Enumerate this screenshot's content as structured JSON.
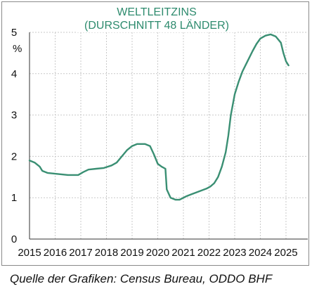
{
  "chart_data": {
    "type": "line",
    "title": [
      "WELTLEITZINS",
      "(DURSCHNITT 48 LÄNDER)"
    ],
    "ylabel": "%",
    "xlim": [
      2015.0,
      2025.85
    ],
    "ylim": [
      0,
      5
    ],
    "yticks": [
      "0",
      "1",
      "2",
      "3",
      "4",
      "5"
    ],
    "xticks": [
      "2015",
      "2016",
      "2017",
      "2018",
      "2019",
      "2020",
      "2021",
      "2022",
      "2023",
      "2024",
      "2025"
    ],
    "grid": true,
    "series_color": "#3a8f73",
    "series": [
      {
        "x": [
          2015.0,
          2015.2,
          2015.4,
          2015.5,
          2015.7,
          2016.0,
          2016.5,
          2016.9,
          2017.1,
          2017.3,
          2017.6,
          2017.9,
          2018.2,
          2018.4,
          2018.6,
          2018.8,
          2019.0,
          2019.2,
          2019.5,
          2019.7,
          2019.85,
          2020.0,
          2020.15,
          2020.3,
          2020.35,
          2020.5,
          2020.7,
          2020.85,
          2021.1,
          2021.3,
          2021.6,
          2021.9,
          2022.05,
          2022.2,
          2022.35,
          2022.5,
          2022.65,
          2022.75,
          2022.85,
          2023.0,
          2023.15,
          2023.3,
          2023.5,
          2023.7,
          2023.85,
          2024.0,
          2024.2,
          2024.4,
          2024.6,
          2024.8,
          2024.9,
          2025.0,
          2025.1
        ],
        "values": [
          1.9,
          1.85,
          1.75,
          1.65,
          1.6,
          1.58,
          1.55,
          1.55,
          1.62,
          1.68,
          1.7,
          1.72,
          1.78,
          1.85,
          2.0,
          2.15,
          2.25,
          2.3,
          2.3,
          2.25,
          2.05,
          1.82,
          1.75,
          1.7,
          1.2,
          1.0,
          0.95,
          0.95,
          1.03,
          1.08,
          1.15,
          1.22,
          1.27,
          1.35,
          1.5,
          1.75,
          2.1,
          2.5,
          3.0,
          3.5,
          3.8,
          4.05,
          4.3,
          4.55,
          4.72,
          4.85,
          4.92,
          4.95,
          4.9,
          4.75,
          4.5,
          4.3,
          4.2
        ]
      }
    ]
  },
  "source": "Quelle der Grafiken: Census Bureau, ODDO BHF"
}
